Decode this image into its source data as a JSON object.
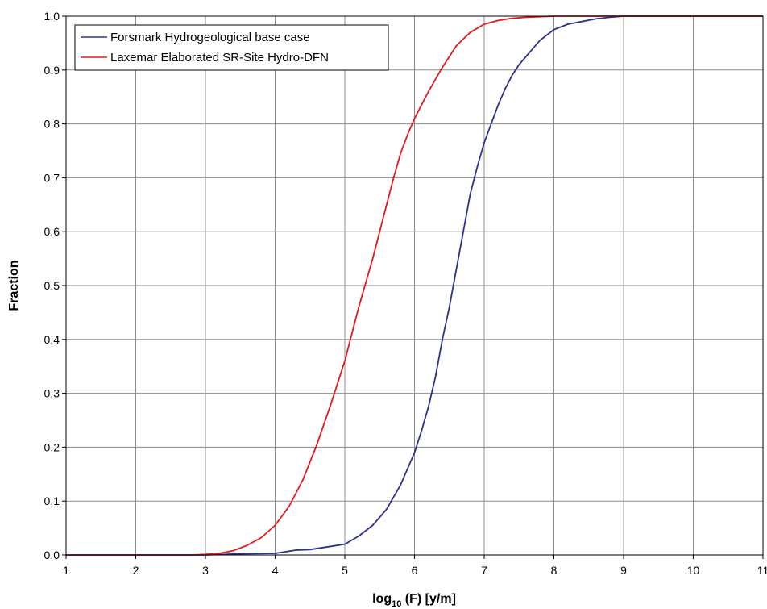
{
  "chart_data": {
    "type": "line",
    "title": "",
    "xlabel_main": "log",
    "xlabel_sub": "10",
    "xlabel_rest": " (F) [y/m]",
    "ylabel": "Fraction",
    "xlim": [
      1,
      11
    ],
    "ylim": [
      0,
      1
    ],
    "xticks": [
      "1",
      "2",
      "3",
      "4",
      "5",
      "6",
      "7",
      "8",
      "9",
      "10",
      "11"
    ],
    "yticks": [
      "0.0",
      "0.1",
      "0.2",
      "0.3",
      "0.4",
      "0.5",
      "0.6",
      "0.7",
      "0.8",
      "0.9",
      "1.0"
    ],
    "grid": true,
    "legend_position": "top-left",
    "series": [
      {
        "name": "Forsmark Hydrogeological base case",
        "color": "#2e3192",
        "points": [
          [
            1,
            0
          ],
          [
            3.0,
            0
          ],
          [
            3.5,
            0.002
          ],
          [
            4.0,
            0.003
          ],
          [
            4.2,
            0.007
          ],
          [
            4.3,
            0.009
          ],
          [
            4.5,
            0.01
          ],
          [
            4.8,
            0.016
          ],
          [
            5.0,
            0.02
          ],
          [
            5.2,
            0.035
          ],
          [
            5.4,
            0.055
          ],
          [
            5.6,
            0.085
          ],
          [
            5.8,
            0.13
          ],
          [
            6.0,
            0.19
          ],
          [
            6.1,
            0.23
          ],
          [
            6.2,
            0.275
          ],
          [
            6.3,
            0.33
          ],
          [
            6.4,
            0.4
          ],
          [
            6.5,
            0.46
          ],
          [
            6.6,
            0.53
          ],
          [
            6.7,
            0.6
          ],
          [
            6.8,
            0.67
          ],
          [
            6.9,
            0.72
          ],
          [
            7.0,
            0.765
          ],
          [
            7.1,
            0.8
          ],
          [
            7.2,
            0.835
          ],
          [
            7.3,
            0.865
          ],
          [
            7.4,
            0.89
          ],
          [
            7.5,
            0.91
          ],
          [
            7.6,
            0.925
          ],
          [
            7.7,
            0.94
          ],
          [
            7.8,
            0.955
          ],
          [
            7.9,
            0.965
          ],
          [
            8.0,
            0.975
          ],
          [
            8.2,
            0.985
          ],
          [
            8.4,
            0.99
          ],
          [
            8.6,
            0.995
          ],
          [
            8.8,
            0.998
          ],
          [
            9.0,
            1.0
          ],
          [
            11,
            1.0
          ]
        ]
      },
      {
        "name": "Laxemar Elaborated SR-Site Hydro-DFN",
        "color": "#e41a1c",
        "points": [
          [
            1,
            0
          ],
          [
            2.8,
            0
          ],
          [
            3.0,
            0.001
          ],
          [
            3.2,
            0.003
          ],
          [
            3.4,
            0.008
          ],
          [
            3.6,
            0.018
          ],
          [
            3.8,
            0.032
          ],
          [
            4.0,
            0.055
          ],
          [
            4.2,
            0.09
          ],
          [
            4.4,
            0.14
          ],
          [
            4.6,
            0.205
          ],
          [
            4.8,
            0.28
          ],
          [
            5.0,
            0.36
          ],
          [
            5.1,
            0.41
          ],
          [
            5.2,
            0.46
          ],
          [
            5.3,
            0.505
          ],
          [
            5.4,
            0.55
          ],
          [
            5.5,
            0.6
          ],
          [
            5.6,
            0.65
          ],
          [
            5.7,
            0.7
          ],
          [
            5.8,
            0.745
          ],
          [
            5.9,
            0.78
          ],
          [
            6.0,
            0.81
          ],
          [
            6.2,
            0.86
          ],
          [
            6.4,
            0.905
          ],
          [
            6.6,
            0.945
          ],
          [
            6.8,
            0.97
          ],
          [
            7.0,
            0.985
          ],
          [
            7.2,
            0.992
          ],
          [
            7.4,
            0.996
          ],
          [
            7.6,
            0.998
          ],
          [
            7.8,
            0.999
          ],
          [
            8.0,
            1.0
          ],
          [
            11,
            1.0
          ]
        ]
      }
    ]
  }
}
